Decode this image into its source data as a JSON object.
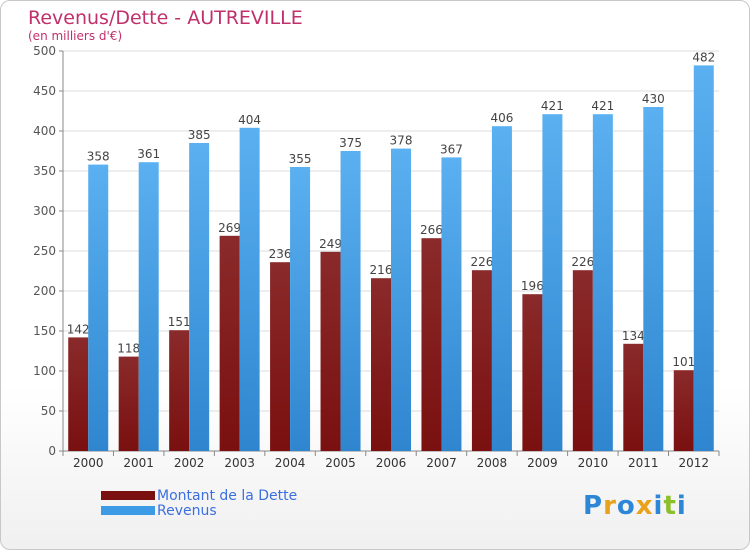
{
  "title": "Revenus/Dette - AUTREVILLE",
  "subtitle": "(en milliers d'€)",
  "colors": {
    "debt": "#7a1010",
    "revenue": "#3d9be6",
    "title": "#c0306a",
    "legend_text": "#3b6fe0"
  },
  "legend": {
    "debt_label": "Montant de la Dette",
    "revenue_label": "Revenus"
  },
  "logo": {
    "letters": [
      "P",
      "r",
      "o",
      "x",
      "i",
      "t",
      "i"
    ],
    "colors": [
      "#2e86d6",
      "#e8a21c",
      "#2e86d6",
      "#e8a21c",
      "#2e86d6",
      "#8bbf2b",
      "#2e86d6"
    ]
  },
  "chart_data": {
    "type": "bar",
    "categories": [
      "2000",
      "2001",
      "2002",
      "2003",
      "2004",
      "2005",
      "2006",
      "2007",
      "2008",
      "2009",
      "2010",
      "2011",
      "2012"
    ],
    "series": [
      {
        "name": "Montant de la Dette",
        "values": [
          142,
          118,
          151,
          269,
          236,
          249,
          216,
          266,
          226,
          196,
          226,
          134,
          101
        ]
      },
      {
        "name": "Revenus",
        "values": [
          358,
          361,
          385,
          404,
          355,
          375,
          378,
          367,
          406,
          421,
          421,
          430,
          482
        ]
      }
    ],
    "ylim": [
      0,
      500
    ],
    "yticks": [
      0,
      50,
      100,
      150,
      200,
      250,
      300,
      350,
      400,
      450,
      500
    ],
    "grid": true,
    "legend_position": "bottom-left"
  }
}
